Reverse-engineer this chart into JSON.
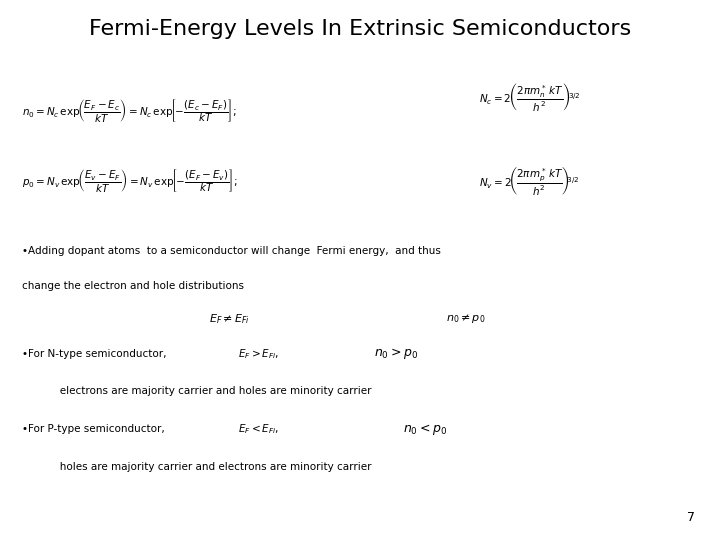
{
  "title": "Fermi-Energy Levels In Extrinsic Semiconductors",
  "title_fontsize": 16,
  "background_color": "#ffffff",
  "page_number": "7",
  "text_color": "#000000",
  "title_weight": "normal",
  "eq_fontsize": 7.5,
  "eq_fontsize_large": 8.5,
  "text_fontsize": 7.5,
  "inline_eq_fontsize": 8.0,
  "big_eq_fontsize": 9.5,
  "bullet1_line1": "•Adding dopant atoms  to a semiconductor will change  Fermi energy,  and thus",
  "bullet1_line2": "change the electron and hole distributions",
  "bullet2_text": "•For N-type semiconductor,",
  "bullet2_sub": "   electrons are majority carrier and holes are minority carrier",
  "bullet3_text": "•For P-type semiconductor,",
  "bullet3_sub": "   holes are majority carrier and electrons are minority carrier"
}
